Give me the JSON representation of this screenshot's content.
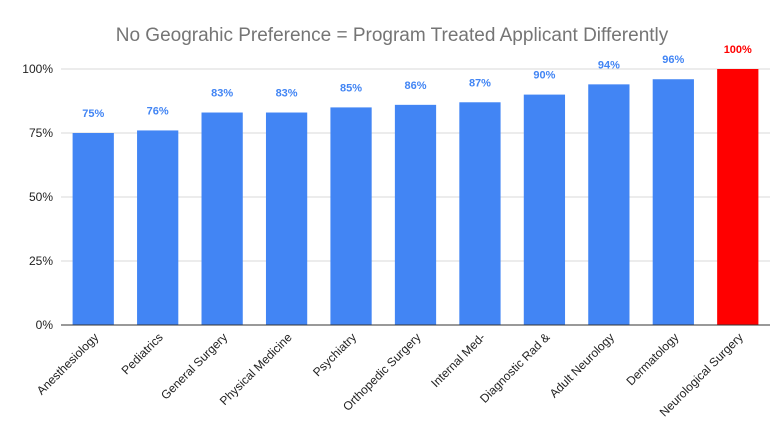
{
  "chart_data": {
    "type": "bar",
    "title": "No Geograhic Preference = Program Treated Applicant Differently",
    "xlabel": "",
    "ylabel": "",
    "ylim": [
      0,
      100
    ],
    "yticks": [
      0,
      25,
      50,
      75,
      100
    ],
    "ytick_labels": [
      "0%",
      "25%",
      "50%",
      "75%",
      "100%"
    ],
    "grid": true,
    "legend": "none",
    "categories": [
      "Anesthesiology",
      "Pediatrics",
      "General Surgery",
      "Physical Medicine",
      "Psychiatry",
      "Orthopedic Surgery",
      "Internal Med-",
      "Diagnostic Rad &",
      "Adult Neurology",
      "Dermatology",
      "Neurological Surgery"
    ],
    "values": [
      75,
      76,
      83,
      83,
      85,
      86,
      87,
      90,
      94,
      96,
      100
    ],
    "value_labels": [
      "75%",
      "76%",
      "83%",
      "83%",
      "85%",
      "86%",
      "87%",
      "90%",
      "94%",
      "96%",
      "100%"
    ],
    "bar_colors": [
      "#4285f4",
      "#4285f4",
      "#4285f4",
      "#4285f4",
      "#4285f4",
      "#4285f4",
      "#4285f4",
      "#4285f4",
      "#4285f4",
      "#4285f4",
      "#ff0000"
    ],
    "label_colors": [
      "#4285f4",
      "#4285f4",
      "#4285f4",
      "#4285f4",
      "#4285f4",
      "#4285f4",
      "#4285f4",
      "#4285f4",
      "#4285f4",
      "#4285f4",
      "#ff0000"
    ]
  }
}
